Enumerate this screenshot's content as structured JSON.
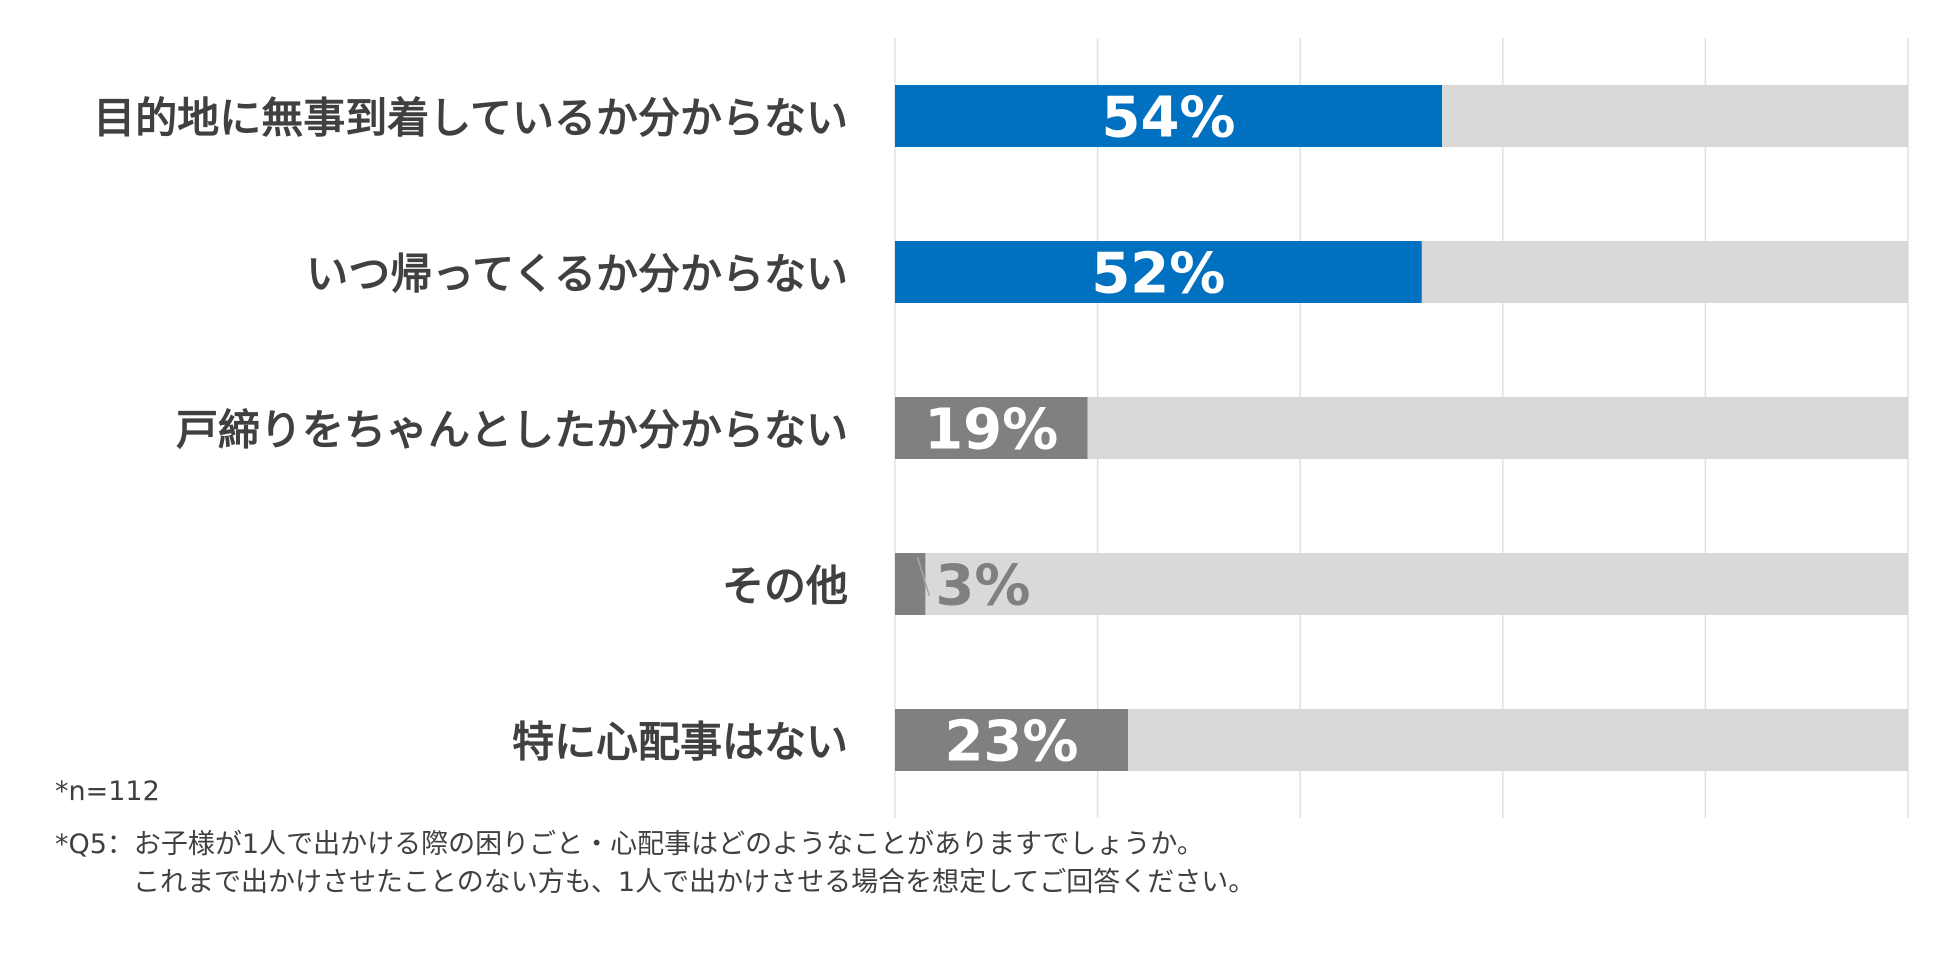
{
  "chart_data": {
    "type": "bar",
    "orientation": "horizontal",
    "categories": [
      "目的地に無事到着しているか分からない",
      "いつ帰ってくるか分からない",
      "戸締りをちゃんとしたか分からない",
      "その他",
      "特に心配事はない"
    ],
    "values": [
      54,
      52,
      19,
      3,
      23
    ],
    "value_labels": [
      "54%",
      "52%",
      "19%",
      "3%",
      "23%"
    ],
    "xlim": [
      0,
      100
    ],
    "grid": true,
    "stacked_remainder_to": 100,
    "title": "",
    "xlabel": "",
    "ylabel": "",
    "colors": {
      "highlight": "#0070c0",
      "normal": "#808080",
      "remainder": "#d9d9d9",
      "grid": "#e0e0e0",
      "label_inside": "#ffffff",
      "label_outside": "#808080"
    },
    "highlighted": [
      true,
      true,
      false,
      false,
      false
    ]
  },
  "notes": {
    "n": "*n=112",
    "question_line1": "*Q5：お子様が1人で出かける際の困りごと・心配事はどのようなことがありますでしょうか。",
    "question_line2": "これまで出かけさせたことのない方も、1人で出かけさせる場合を想定してご回答ください。"
  }
}
